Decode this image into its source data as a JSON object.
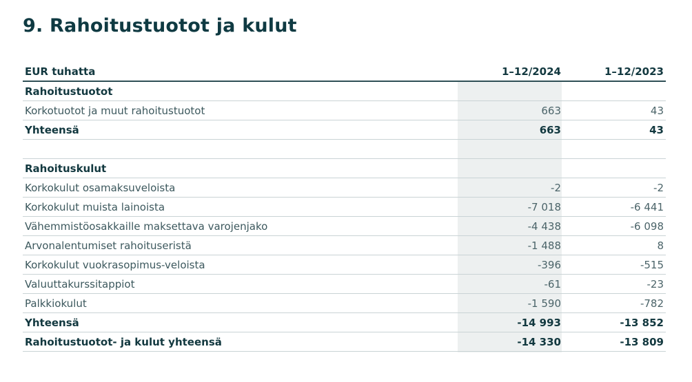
{
  "title": "9. Rahoitustuotot ja kulut",
  "table": {
    "headers": [
      "EUR tuhatta",
      "1–12/2024",
      "1–12/2023"
    ],
    "rows": [
      {
        "label": "Rahoitustuotot",
        "v2024": "",
        "v2023": "",
        "type": "heading"
      },
      {
        "label": "Korkotuotot ja muut rahoitustuotot",
        "v2024": "663",
        "v2023": "43",
        "type": "normal"
      },
      {
        "label": "Yhteensä",
        "v2024": "663",
        "v2023": "43",
        "type": "bold"
      },
      {
        "label": "",
        "v2024": "",
        "v2023": "",
        "type": "empty"
      },
      {
        "label": "Rahoituskulut",
        "v2024": "",
        "v2023": "",
        "type": "heading"
      },
      {
        "label": "Korkokulut osamaksuveloista",
        "v2024": "-2",
        "v2023": "-2",
        "type": "normal"
      },
      {
        "label": "Korkokulut muista lainoista",
        "v2024": "-7 018",
        "v2023": "-6 441",
        "type": "normal"
      },
      {
        "label": "Vähemmistöosakkaille maksettava varojenjako",
        "v2024": "-4 438",
        "v2023": "-6 098",
        "type": "normal"
      },
      {
        "label": "Arvonalentumiset rahoituseristä",
        "v2024": "-1 488",
        "v2023": "8",
        "type": "normal"
      },
      {
        "label": "Korkokulut vuokrasopimus-veloista",
        "v2024": "-396",
        "v2023": "-515",
        "type": "normal"
      },
      {
        "label": "Valuuttakurssitappiot",
        "v2024": "-61",
        "v2023": "-23",
        "type": "normal"
      },
      {
        "label": "Palkkiokulut",
        "v2024": "-1 590",
        "v2023": "-782",
        "type": "normal"
      },
      {
        "label": "Yhteensä",
        "v2024": "-14 993",
        "v2023": "-13 852",
        "type": "bold"
      },
      {
        "label": "Rahoitustuotot- ja kulut yhteensä",
        "v2024": "-14 330",
        "v2023": "-13 809",
        "type": "bold"
      }
    ]
  },
  "colors": {
    "text": "#12383f",
    "shade": "#edf0f0",
    "rule": "#c9d3d5"
  }
}
